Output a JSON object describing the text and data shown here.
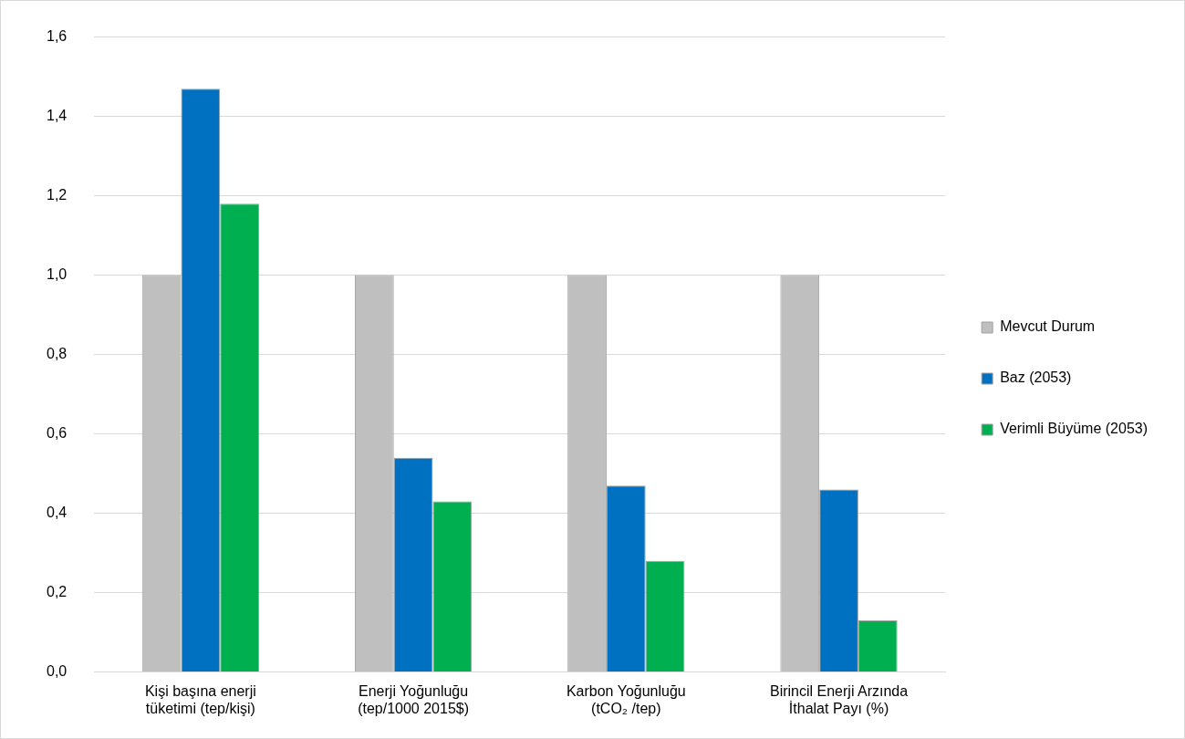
{
  "chart_data": {
    "type": "bar",
    "categories": [
      "Kişi başına enerji\ntüketimi (tep/kişi)",
      "Enerji Yoğunluğu\n(tep/1000 2015$)",
      "Karbon Yoğunluğu\n(tCO₂ /tep)",
      "Birincil Enerji Arzında\nİthalat Payı (%)"
    ],
    "series": [
      {
        "name": "Mevcut Durum",
        "color": "#bfbfbf",
        "values": [
          1.0,
          1.0,
          1.0,
          1.0
        ]
      },
      {
        "name": "Baz (2053)",
        "color": "#0070c0",
        "values": [
          1.47,
          0.54,
          0.47,
          0.46
        ]
      },
      {
        "name": "Verimli Büyüme (2053)",
        "color": "#00b050",
        "values": [
          1.18,
          0.43,
          0.28,
          0.13
        ]
      }
    ],
    "ylim": [
      0,
      1.6
    ],
    "yticks": [
      {
        "value": 0,
        "label": "0,0"
      },
      {
        "value": 0.2,
        "label": "0,2"
      },
      {
        "value": 0.4,
        "label": "0,4"
      },
      {
        "value": 0.6,
        "label": "0,6"
      },
      {
        "value": 0.8,
        "label": "0,8"
      },
      {
        "value": 1.0,
        "label": "1,0"
      },
      {
        "value": 1.2,
        "label": "1,2"
      },
      {
        "value": 1.4,
        "label": "1,4"
      },
      {
        "value": 1.6,
        "label": "1,6"
      }
    ],
    "grid": "y",
    "legend": "right"
  }
}
